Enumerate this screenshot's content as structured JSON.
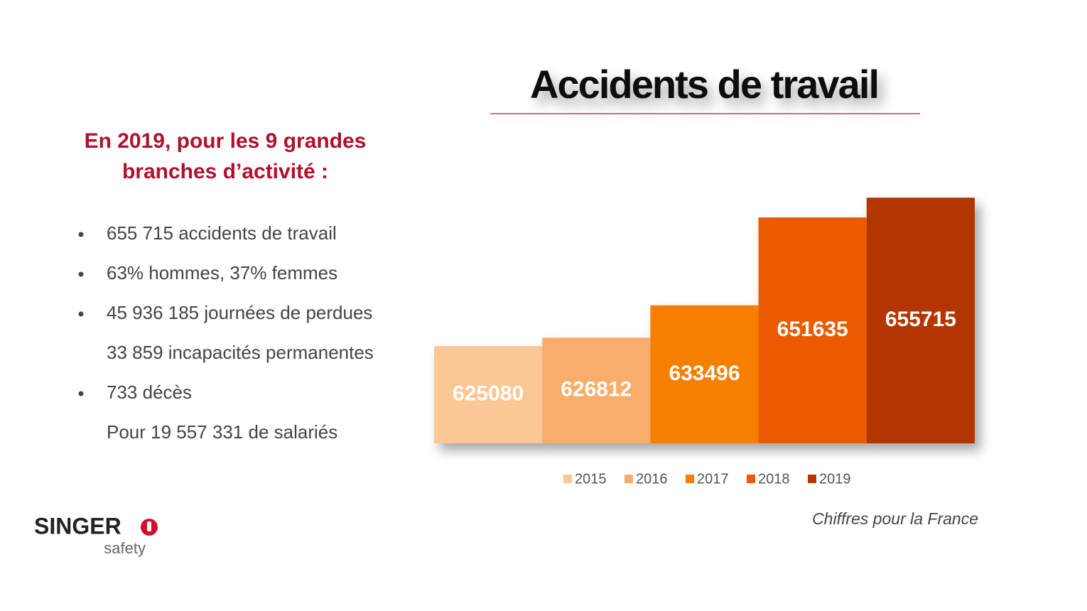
{
  "chart_data": {
    "type": "bar",
    "title": "Accidents de travail",
    "categories": [
      "2015",
      "2016",
      "2017",
      "2018",
      "2019"
    ],
    "values": [
      625080,
      626812,
      633496,
      651635,
      655715
    ],
    "colors": [
      "#fbc795",
      "#f9ad6a",
      "#f77f00",
      "#ec5a00",
      "#b53600"
    ],
    "ylim": [
      605000,
      660000
    ],
    "note": "Chiffres pour la France"
  },
  "intro": {
    "lines": [
      "En 2019, pour les 9 grandes",
      "branches d’activité :"
    ]
  },
  "list": [
    {
      "text": "655 715 accidents de travail",
      "bullet": true
    },
    {
      "text": "63% hommes, 37% femmes",
      "bullet": true
    },
    {
      "text": "45 936 185 journées de perdues",
      "bullet": true
    },
    {
      "text": "33 859 incapacités permanentes",
      "bullet": false
    },
    {
      "text": "733 décès",
      "bullet": true
    },
    {
      "text": "Pour 19 557 331 de salariés",
      "bullet": false
    }
  ],
  "logo": {
    "brand": "SINGER",
    "tagline": "safety"
  }
}
